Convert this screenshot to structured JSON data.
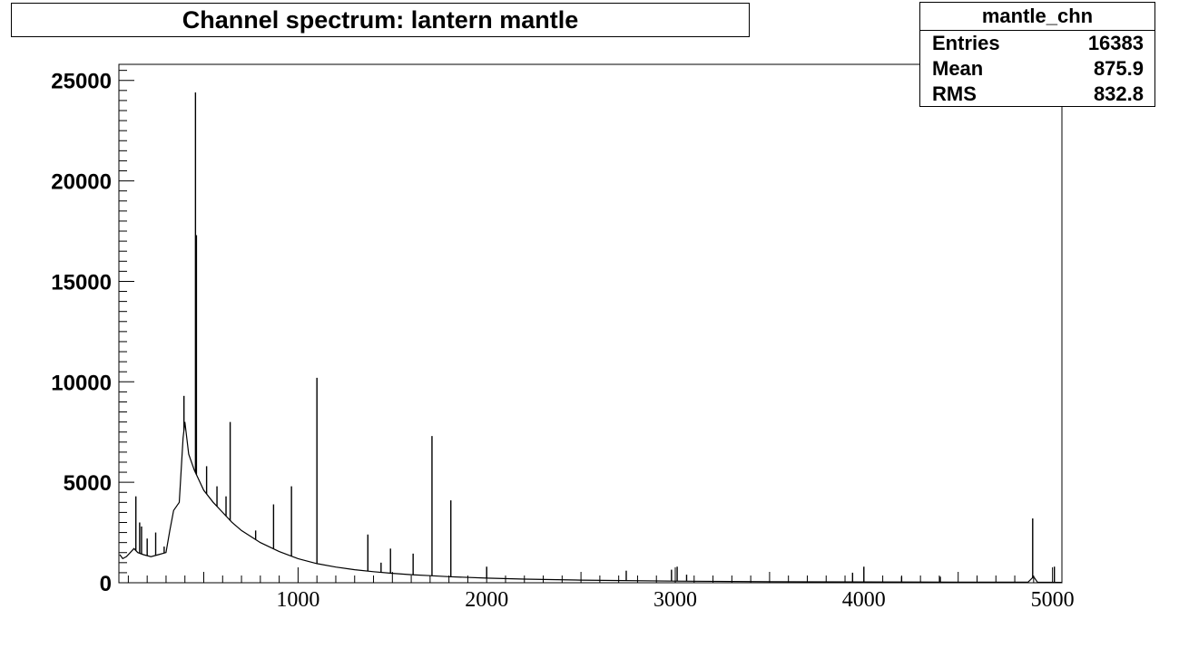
{
  "chart_data": {
    "type": "line",
    "title": "Channel spectrum: lantern mantle",
    "xlabel": "",
    "ylabel": "",
    "xlim": [
      50,
      5050
    ],
    "ylim": [
      0,
      25800
    ],
    "x_ticks": [
      1000,
      2000,
      3000,
      4000,
      5000
    ],
    "y_ticks": [
      0,
      5000,
      10000,
      15000,
      20000,
      25000
    ],
    "stats": {
      "name": "mantle_chn",
      "rows": [
        {
          "label": "Entries",
          "value": "16383"
        },
        {
          "label": "Mean",
          "value": "875.9"
        },
        {
          "label": "RMS",
          "value": "832.8"
        }
      ]
    },
    "continuum": [
      [
        55,
        1400
      ],
      [
        70,
        1200
      ],
      [
        90,
        1300
      ],
      [
        110,
        1500
      ],
      [
        130,
        1700
      ],
      [
        150,
        1500
      ],
      [
        180,
        1400
      ],
      [
        220,
        1300
      ],
      [
        260,
        1400
      ],
      [
        300,
        1500
      ],
      [
        320,
        2600
      ],
      [
        340,
        3600
      ],
      [
        370,
        4000
      ],
      [
        390,
        7200
      ],
      [
        400,
        8000
      ],
      [
        420,
        6400
      ],
      [
        450,
        5600
      ],
      [
        500,
        4600
      ],
      [
        550,
        4000
      ],
      [
        600,
        3500
      ],
      [
        650,
        3000
      ],
      [
        700,
        2600
      ],
      [
        800,
        2000
      ],
      [
        900,
        1550
      ],
      [
        1000,
        1200
      ],
      [
        1100,
        950
      ],
      [
        1200,
        780
      ],
      [
        1300,
        650
      ],
      [
        1400,
        550
      ],
      [
        1500,
        470
      ],
      [
        1600,
        400
      ],
      [
        1700,
        350
      ],
      [
        1800,
        300
      ],
      [
        2000,
        230
      ],
      [
        2200,
        180
      ],
      [
        2500,
        130
      ],
      [
        3000,
        80
      ],
      [
        3500,
        55
      ],
      [
        4000,
        40
      ],
      [
        4500,
        30
      ],
      [
        4870,
        25
      ],
      [
        4900,
        300
      ],
      [
        4920,
        30
      ],
      [
        5050,
        20
      ]
    ],
    "peaks": [
      {
        "x": 140,
        "y": 4300
      },
      {
        "x": 160,
        "y": 3000
      },
      {
        "x": 170,
        "y": 2800
      },
      {
        "x": 200,
        "y": 2200
      },
      {
        "x": 245,
        "y": 2500
      },
      {
        "x": 290,
        "y": 1800
      },
      {
        "x": 395,
        "y": 9300
      },
      {
        "x": 456,
        "y": 24400
      },
      {
        "x": 461,
        "y": 17300
      },
      {
        "x": 515,
        "y": 5800
      },
      {
        "x": 570,
        "y": 4800
      },
      {
        "x": 618,
        "y": 4300
      },
      {
        "x": 640,
        "y": 8000
      },
      {
        "x": 775,
        "y": 2600
      },
      {
        "x": 870,
        "y": 3900
      },
      {
        "x": 965,
        "y": 4800
      },
      {
        "x": 1100,
        "y": 10200
      },
      {
        "x": 1370,
        "y": 2400
      },
      {
        "x": 1440,
        "y": 1000
      },
      {
        "x": 1490,
        "y": 1700
      },
      {
        "x": 1610,
        "y": 1450
      },
      {
        "x": 1710,
        "y": 7300
      },
      {
        "x": 1810,
        "y": 4100
      },
      {
        "x": 2000,
        "y": 800
      },
      {
        "x": 2740,
        "y": 600
      },
      {
        "x": 2980,
        "y": 650
      },
      {
        "x": 3010,
        "y": 800
      },
      {
        "x": 3060,
        "y": 400
      },
      {
        "x": 3940,
        "y": 500
      },
      {
        "x": 4000,
        "y": 800
      },
      {
        "x": 4200,
        "y": 300
      },
      {
        "x": 4405,
        "y": 300
      },
      {
        "x": 4895,
        "y": 3200
      },
      {
        "x": 5010,
        "y": 800
      }
    ],
    "grid": false,
    "legend": "top-right"
  }
}
